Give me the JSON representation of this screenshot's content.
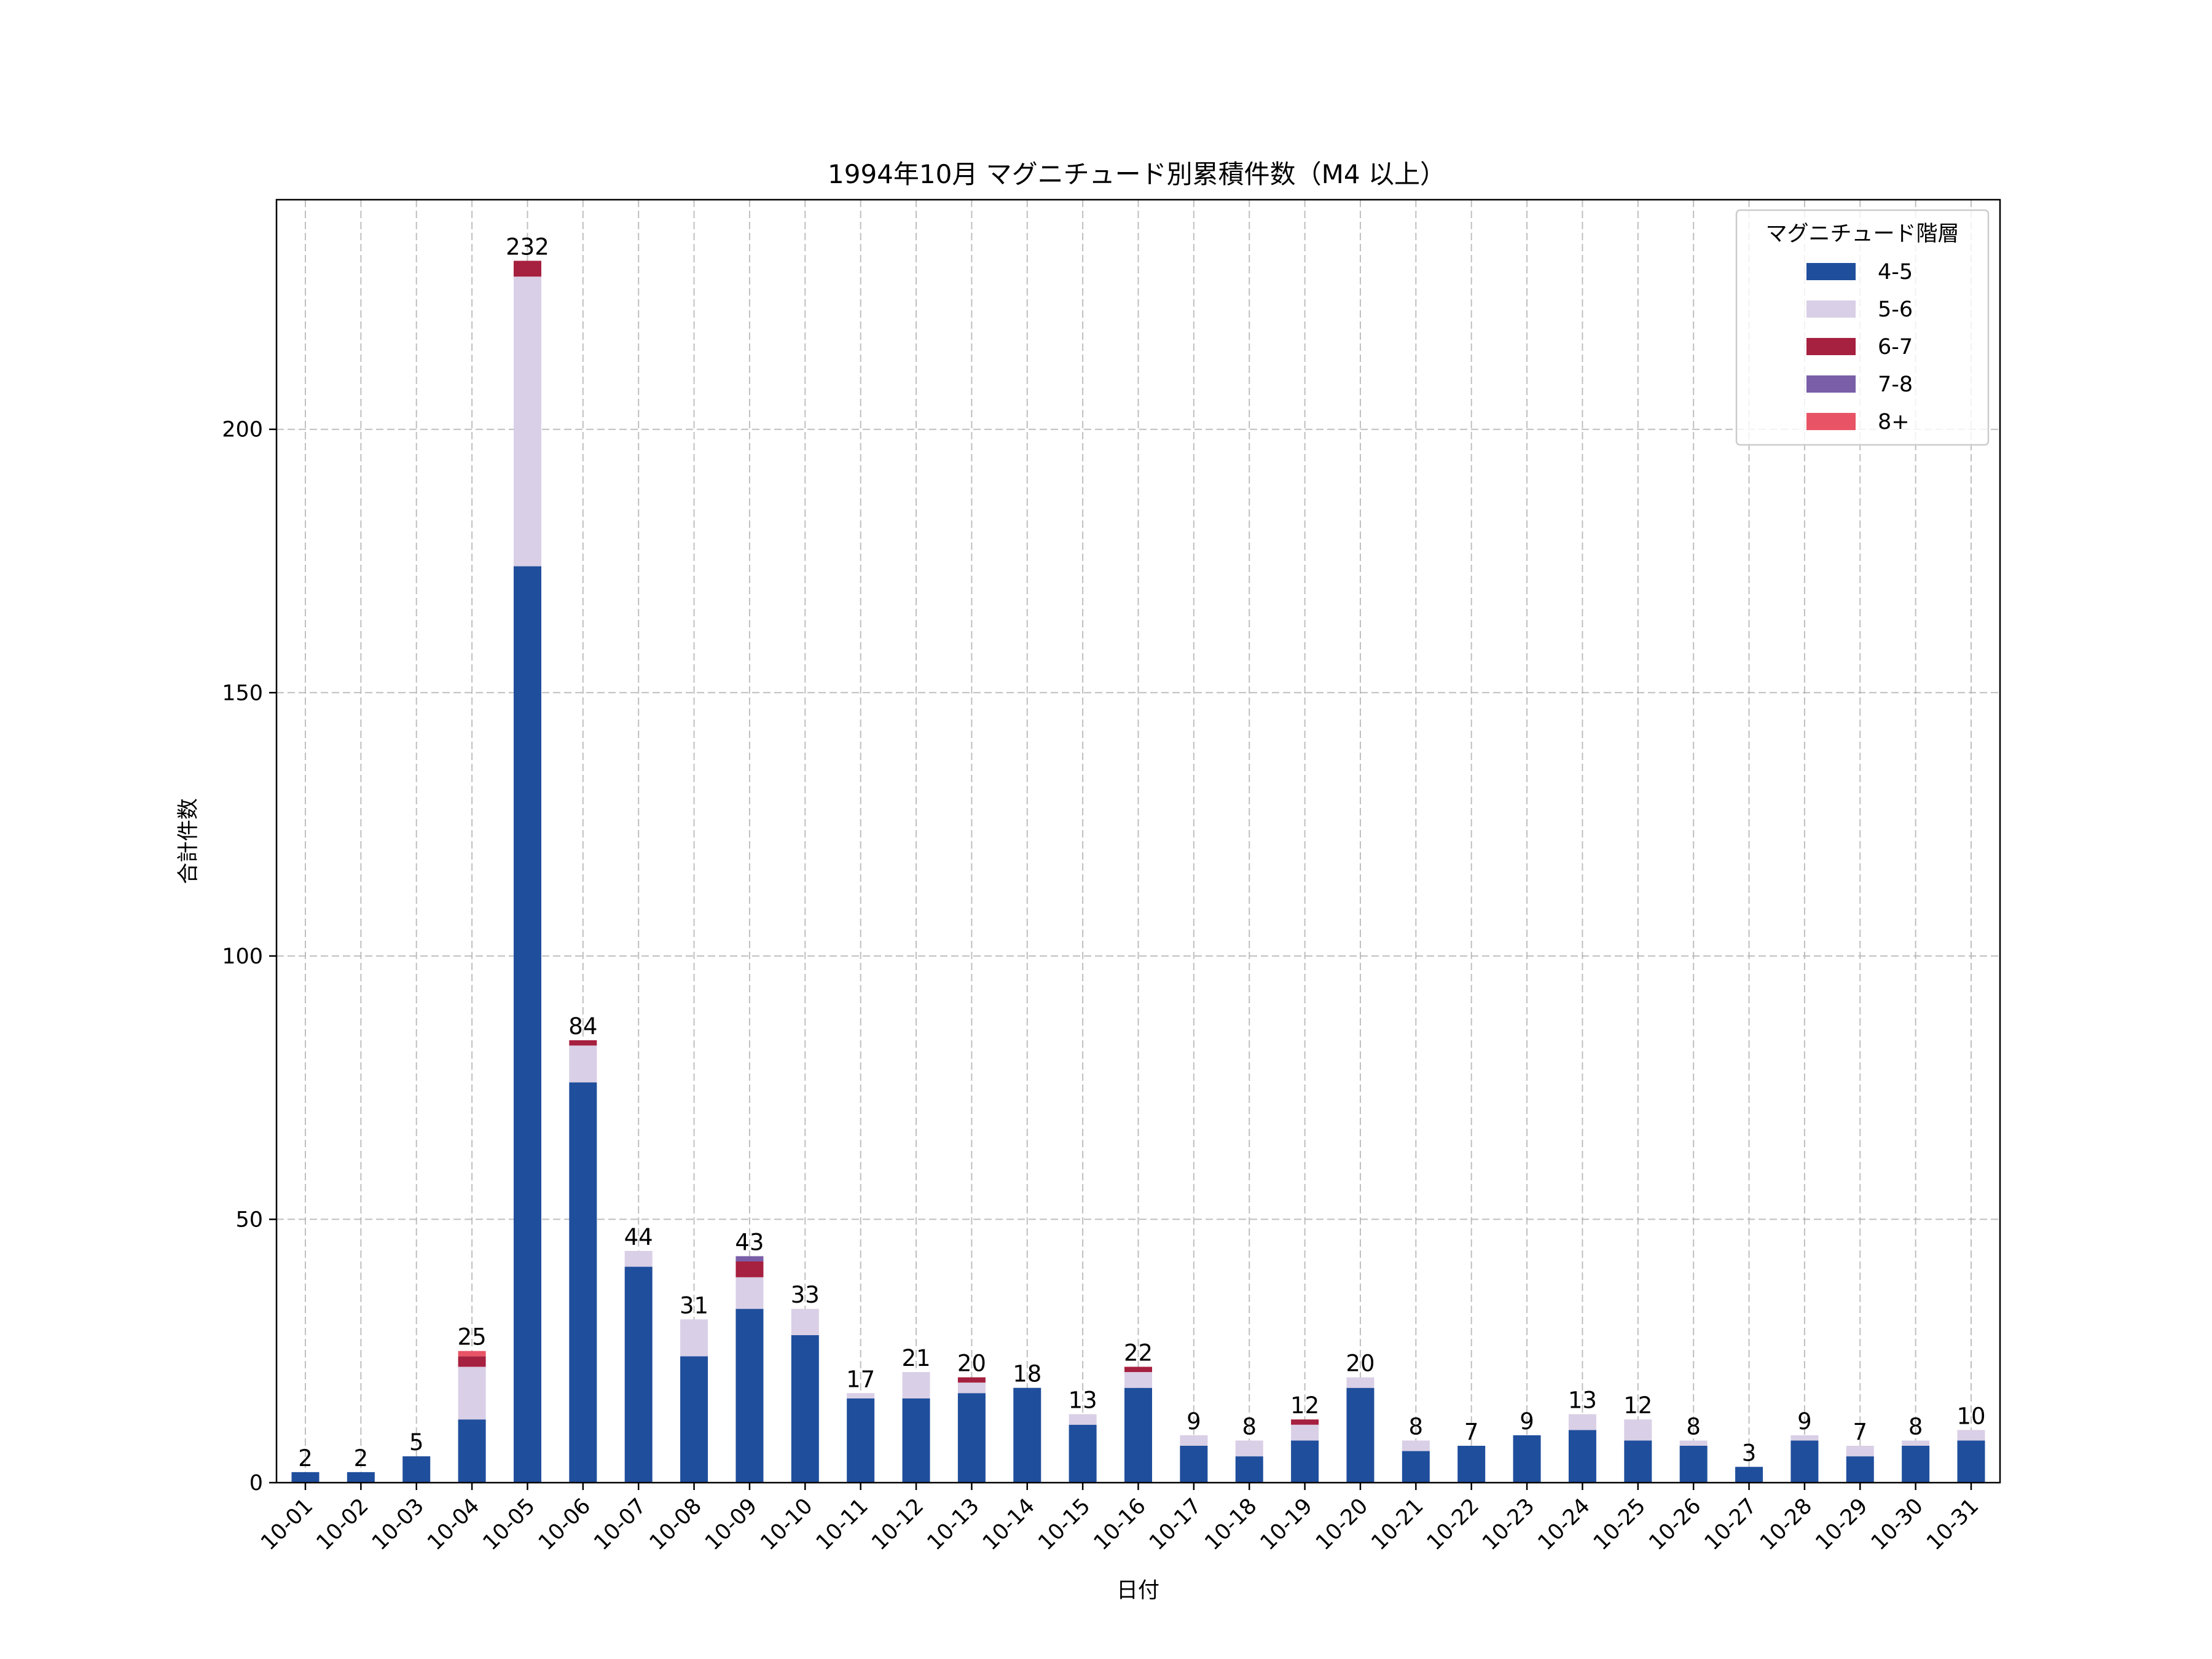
{
  "chart_data": {
    "type": "bar",
    "stacked": true,
    "title": "1994年10月 マグニチュード別累積件数（M4 以上）",
    "xlabel": "日付",
    "ylabel": "合計件数",
    "ylim": [
      0,
      243.6
    ],
    "yticks": [
      0,
      50,
      100,
      150,
      200
    ],
    "grid": true,
    "legend_title": "マグニチュード階層",
    "legend_position": "top-right",
    "categories": [
      "10-01",
      "10-02",
      "10-03",
      "10-04",
      "10-05",
      "10-06",
      "10-07",
      "10-08",
      "10-09",
      "10-10",
      "10-11",
      "10-12",
      "10-13",
      "10-14",
      "10-15",
      "10-16",
      "10-17",
      "10-18",
      "10-19",
      "10-20",
      "10-21",
      "10-22",
      "10-23",
      "10-24",
      "10-25",
      "10-26",
      "10-27",
      "10-28",
      "10-29",
      "10-30",
      "10-31"
    ],
    "series": [
      {
        "name": "4-5",
        "color": "#1f4e9c",
        "values": [
          2,
          2,
          5,
          12,
          174,
          76,
          41,
          24,
          33,
          28,
          16,
          16,
          17,
          18,
          11,
          18,
          7,
          5,
          8,
          18,
          6,
          7,
          9,
          10,
          8,
          7,
          3,
          8,
          5,
          7,
          8
        ]
      },
      {
        "name": "5-6",
        "color": "#d9cfe6",
        "values": [
          0,
          0,
          0,
          10,
          55,
          7,
          3,
          7,
          6,
          5,
          1,
          5,
          2,
          0,
          2,
          3,
          2,
          3,
          3,
          2,
          2,
          0,
          0,
          3,
          4,
          1,
          0,
          1,
          2,
          1,
          2
        ]
      },
      {
        "name": "6-7",
        "color": "#a6203f",
        "values": [
          0,
          0,
          0,
          2,
          3,
          1,
          0,
          0,
          3,
          0,
          0,
          0,
          1,
          0,
          0,
          1,
          0,
          0,
          1,
          0,
          0,
          0,
          0,
          0,
          0,
          0,
          0,
          0,
          0,
          0,
          0
        ]
      },
      {
        "name": "7-8",
        "color": "#7a5fa8",
        "values": [
          0,
          0,
          0,
          0,
          0,
          0,
          0,
          0,
          1,
          0,
          0,
          0,
          0,
          0,
          0,
          0,
          0,
          0,
          0,
          0,
          0,
          0,
          0,
          0,
          0,
          0,
          0,
          0,
          0,
          0,
          0
        ]
      },
      {
        "name": "8+",
        "color": "#e85466",
        "values": [
          0,
          0,
          0,
          1,
          0,
          0,
          0,
          0,
          0,
          0,
          0,
          0,
          0,
          0,
          0,
          0,
          0,
          0,
          0,
          0,
          0,
          0,
          0,
          0,
          0,
          0,
          0,
          0,
          0,
          0,
          0
        ]
      }
    ],
    "totals": [
      2,
      2,
      5,
      25,
      232,
      84,
      44,
      31,
      43,
      33,
      17,
      21,
      20,
      18,
      13,
      22,
      9,
      8,
      12,
      20,
      8,
      7,
      9,
      13,
      12,
      8,
      3,
      9,
      7,
      8,
      10
    ]
  }
}
